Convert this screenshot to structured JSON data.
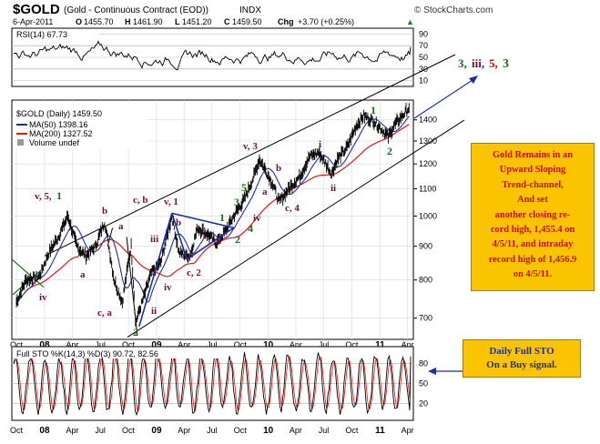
{
  "header": {
    "symbol": "$GOLD",
    "description": "(Gold - Continuous Contract (EOD))",
    "exchange": "INDX",
    "watermark": "© StockCharts.com",
    "date": "6-Apr-2011",
    "open_label": "O",
    "open": "1455.70",
    "high_label": "H",
    "high": "1461.90",
    "low_label": "L",
    "low": "1451.20",
    "close_label": "C",
    "close": "1459.50",
    "chg_label": "Chg",
    "chg": "+3.70 (+0.25%)",
    "up_arrow": "▲"
  },
  "rsi_panel": {
    "label": "RSI(14) 67.73",
    "ticks": [
      "90",
      "70",
      "50",
      "30",
      "10"
    ],
    "color": "#000000"
  },
  "price_panel": {
    "legend": {
      "title": "$GOLD (Daily) 1459.50",
      "ma50": "MA(50) 1398.16",
      "ma200": "MA(200) 1327.52",
      "volume": "Volume undef"
    },
    "y_ticks": [
      "1400",
      "1300",
      "1200",
      "1100",
      "1000",
      "900",
      "800",
      "700"
    ],
    "x_ticks": [
      "Oct",
      "08",
      "Apr",
      "Jul",
      "Oct",
      "09",
      "Apr",
      "Jul",
      "Oct",
      "10",
      "Apr",
      "Jul",
      "Oct",
      "11",
      "Apr"
    ],
    "colors": {
      "price": "#000000",
      "ma50": "#1c2fa0",
      "ma200": "#e01818",
      "channel": "#000000"
    }
  },
  "wave_labels": [
    {
      "text": "v, 5,",
      "color": "#8b0a3a"
    },
    {
      "text": "1",
      "color": "#1a6e1a"
    },
    {
      "text": "b",
      "color": "#6a1040"
    },
    {
      "text": "a",
      "color": "#6a1040"
    },
    {
      "text": "c, b",
      "color": "#8b0a3a"
    },
    {
      "text": "v, 1",
      "color": "#8b0a3a"
    },
    {
      "text": "iv",
      "color": "#6a1040"
    },
    {
      "text": "a",
      "color": "#6a1040"
    },
    {
      "text": "c, a",
      "color": "#8b0a3a"
    },
    {
      "text": "2",
      "color": "#1a6e1a"
    },
    {
      "text": "ii",
      "color": "#6a1040"
    },
    {
      "text": "iii",
      "color": "#6a1040"
    },
    {
      "text": "b",
      "color": "#6a1040"
    },
    {
      "text": "a",
      "color": "#6a1040"
    },
    {
      "text": "c, 2",
      "color": "#8b0a3a"
    },
    {
      "text": "iv",
      "color": "#6a1040"
    },
    {
      "text": "i",
      "color": "#6a1040"
    },
    {
      "text": "1",
      "color": "#1a6e1a"
    },
    {
      "text": "ii",
      "color": "#6a1040"
    },
    {
      "text": "3",
      "color": "#1a6e1a"
    },
    {
      "text": "2",
      "color": "#1a6e1a"
    },
    {
      "text": "5,",
      "color": "#1a6e1a"
    },
    {
      "text": "4",
      "color": "#1a6e1a"
    },
    {
      "text": "iv",
      "color": "#6a1040"
    },
    {
      "text": "v, 3",
      "color": "#8b0a3a"
    },
    {
      "text": "b",
      "color": "#6a1040"
    },
    {
      "text": "a",
      "color": "#6a1040"
    },
    {
      "text": "c, 4",
      "color": "#8b0a3a"
    },
    {
      "text": "i",
      "color": "#6a1040"
    },
    {
      "text": "ii",
      "color": "#6a1040"
    },
    {
      "text": "1",
      "color": "#1a6e1a"
    },
    {
      "text": "2",
      "color": "#1a6e1a"
    }
  ],
  "target_label": {
    "p1": "3,",
    "p2": "iii,",
    "p3": "5,",
    "p4": "3"
  },
  "sto_panel": {
    "label": "Full STO %K(14,3) %D(3) 90.72, 82.56",
    "ticks": [
      "80",
      "50",
      "20"
    ]
  },
  "note_main": {
    "lines": [
      "Gold Remains in an",
      "Upward Sloping",
      "Trend-channel,",
      "And set",
      "another closing re-",
      "cord high, 1,455.4 on",
      "4/5/11, and intraday",
      "record high of 1,456.9",
      "on 4/5/11."
    ],
    "bg": "#fbc400",
    "text_color": "#c01010"
  },
  "note_sto": {
    "lines": [
      "Daily Full STO",
      "On a Buy signal."
    ],
    "bg": "#fbc400",
    "text_color": "#1c2fa0"
  },
  "chart_data": {
    "type": "line",
    "title": "$GOLD (Gold - Continuous Contract (EOD))",
    "x_range": [
      "2007-10",
      "2011-04"
    ],
    "y_range": [
      650,
      1500
    ],
    "y_scale": "log",
    "series": [
      {
        "name": "$GOLD (Daily)",
        "points": [
          [
            "2007-10-01",
            740
          ],
          [
            "2007-11-01",
            800
          ],
          [
            "2007-12-15",
            810
          ],
          [
            "2008-01-15",
            880
          ],
          [
            "2008-02-15",
            930
          ],
          [
            "2008-03-17",
            1000
          ],
          [
            "2008-04-15",
            900
          ],
          [
            "2008-05-15",
            870
          ],
          [
            "2008-06-15",
            900
          ],
          [
            "2008-07-15",
            980
          ],
          [
            "2008-08-15",
            800
          ],
          [
            "2008-09-11",
            740
          ],
          [
            "2008-10-10",
            900
          ],
          [
            "2008-10-24",
            690
          ],
          [
            "2008-11-15",
            740
          ],
          [
            "2008-12-15",
            820
          ],
          [
            "2009-01-15",
            850
          ],
          [
            "2009-02-20",
            1000
          ],
          [
            "2009-03-15",
            880
          ],
          [
            "2009-04-20",
            870
          ],
          [
            "2009-05-15",
            960
          ],
          [
            "2009-06-15",
            940
          ],
          [
            "2009-07-15",
            910
          ],
          [
            "2009-08-15",
            950
          ],
          [
            "2009-09-15",
            1010
          ],
          [
            "2009-10-15",
            1060
          ],
          [
            "2009-11-15",
            1150
          ],
          [
            "2009-12-03",
            1220
          ],
          [
            "2010-01-15",
            1120
          ],
          [
            "2010-02-05",
            1050
          ],
          [
            "2010-03-15",
            1110
          ],
          [
            "2010-04-15",
            1150
          ],
          [
            "2010-05-15",
            1230
          ],
          [
            "2010-06-15",
            1250
          ],
          [
            "2010-07-27",
            1160
          ],
          [
            "2010-08-15",
            1220
          ],
          [
            "2010-09-15",
            1270
          ],
          [
            "2010-10-15",
            1370
          ],
          [
            "2010-11-09",
            1420
          ],
          [
            "2010-12-15",
            1390
          ],
          [
            "2011-01-28",
            1320
          ],
          [
            "2011-02-15",
            1370
          ],
          [
            "2011-03-15",
            1420
          ],
          [
            "2011-04-06",
            1459.5
          ]
        ]
      },
      {
        "name": "MA(50)",
        "last": 1398.16
      },
      {
        "name": "MA(200)",
        "last": 1327.52
      }
    ],
    "rsi_last": 67.73,
    "sto_k_last": 90.72,
    "sto_d_last": 82.56,
    "legend": "top-left",
    "grid": true
  }
}
